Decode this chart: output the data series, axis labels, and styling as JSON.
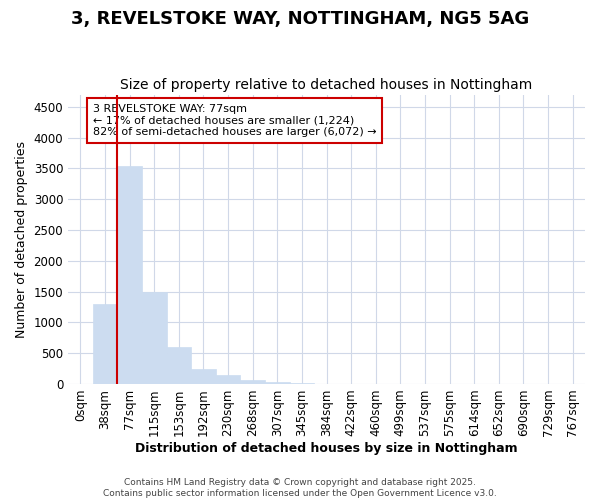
{
  "title": "3, REVELSTOKE WAY, NOTTINGHAM, NG5 5AG",
  "subtitle": "Size of property relative to detached houses in Nottingham",
  "xlabel": "Distribution of detached houses by size in Nottingham",
  "ylabel": "Number of detached properties",
  "categories": [
    "0sqm",
    "38sqm",
    "77sqm",
    "115sqm",
    "153sqm",
    "192sqm",
    "230sqm",
    "268sqm",
    "307sqm",
    "345sqm",
    "384sqm",
    "422sqm",
    "460sqm",
    "499sqm",
    "537sqm",
    "575sqm",
    "614sqm",
    "652sqm",
    "690sqm",
    "729sqm",
    "767sqm"
  ],
  "values": [
    0,
    1300,
    3540,
    1500,
    600,
    250,
    140,
    70,
    30,
    10,
    5,
    2,
    0,
    0,
    0,
    0,
    0,
    0,
    0,
    0,
    0
  ],
  "bar_color": "#ccdcf0",
  "bar_edge_color": "#ccdcf0",
  "highlight_index": 2,
  "highlight_line_color": "#cc0000",
  "annotation_text": "3 REVELSTOKE WAY: 77sqm\n← 17% of detached houses are smaller (1,224)\n82% of semi-detached houses are larger (6,072) →",
  "annotation_box_color": "#ffffff",
  "annotation_box_edge": "#cc0000",
  "ylim": [
    0,
    4700
  ],
  "yticks": [
    0,
    500,
    1000,
    1500,
    2000,
    2500,
    3000,
    3500,
    4000,
    4500
  ],
  "footer_line1": "Contains HM Land Registry data © Crown copyright and database right 2025.",
  "footer_line2": "Contains public sector information licensed under the Open Government Licence v3.0.",
  "background_color": "#ffffff",
  "grid_color": "#d0d8e8",
  "title_fontsize": 13,
  "subtitle_fontsize": 10,
  "axis_label_fontsize": 9,
  "tick_fontsize": 8.5
}
